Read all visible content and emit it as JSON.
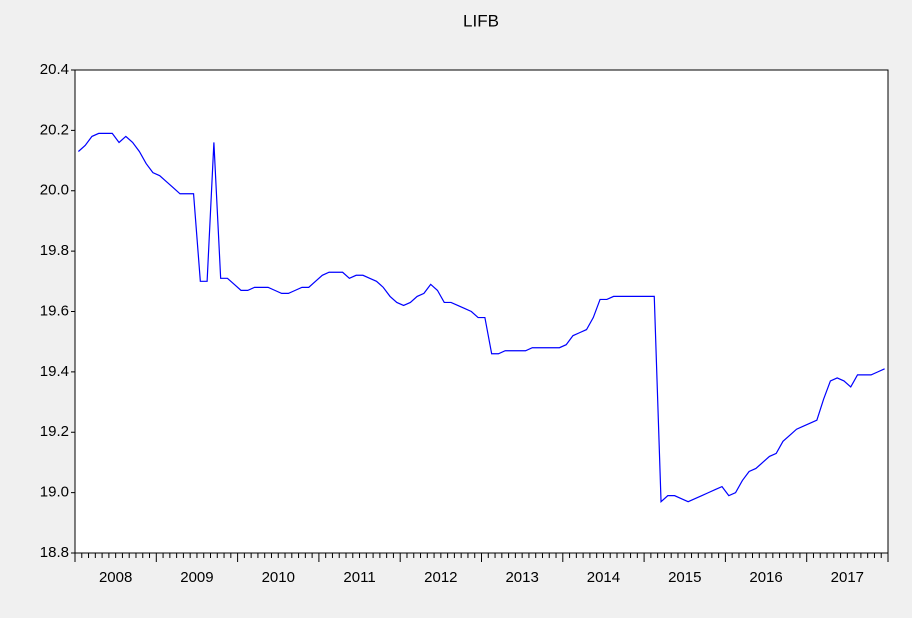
{
  "chart_data": {
    "type": "line",
    "title": "LIFB",
    "categories": [
      "2008",
      null,
      null,
      null,
      null,
      null,
      null,
      null,
      null,
      null,
      null,
      null,
      "2009",
      null,
      null,
      null,
      null,
      null,
      null,
      null,
      null,
      null,
      null,
      null,
      "2010",
      null,
      null,
      null,
      null,
      null,
      null,
      null,
      null,
      null,
      null,
      null,
      "2011",
      null,
      null,
      null,
      null,
      null,
      null,
      null,
      null,
      null,
      null,
      null,
      "2012",
      null,
      null,
      null,
      null,
      null,
      null,
      null,
      null,
      null,
      null,
      null,
      "2013",
      null,
      null,
      null,
      null,
      null,
      null,
      null,
      null,
      null,
      null,
      null,
      "2014",
      null,
      null,
      null,
      null,
      null,
      null,
      null,
      null,
      null,
      null,
      null,
      "2015",
      null,
      null,
      null,
      null,
      null,
      null,
      null,
      null,
      null,
      null,
      null,
      "2016",
      null,
      null,
      null,
      null,
      null,
      null,
      null,
      null,
      null,
      null,
      null,
      "2017",
      null,
      null,
      null,
      null,
      null,
      null,
      null,
      null,
      null,
      null,
      null
    ],
    "series": [
      {
        "name": "LIFB",
        "color": "#0000ff",
        "values": [
          20.13,
          20.15,
          20.18,
          20.19,
          20.19,
          20.19,
          20.16,
          20.18,
          20.16,
          20.13,
          20.09,
          20.06,
          20.05,
          20.03,
          20.01,
          19.99,
          19.99,
          19.99,
          19.7,
          19.7,
          20.16,
          19.71,
          19.71,
          19.69,
          19.67,
          19.67,
          19.68,
          19.68,
          19.68,
          19.67,
          19.66,
          19.66,
          19.67,
          19.68,
          19.68,
          19.7,
          19.72,
          19.73,
          19.73,
          19.73,
          19.71,
          19.72,
          19.72,
          19.71,
          19.7,
          19.68,
          19.65,
          19.63,
          19.62,
          19.63,
          19.65,
          19.66,
          19.69,
          19.67,
          19.63,
          19.63,
          19.62,
          19.61,
          19.6,
          19.58,
          19.58,
          19.46,
          19.46,
          19.47,
          19.47,
          19.47,
          19.47,
          19.48,
          19.48,
          19.48,
          19.48,
          19.48,
          19.49,
          19.52,
          19.53,
          19.54,
          19.58,
          19.64,
          19.64,
          19.65,
          19.65,
          19.65,
          19.65,
          19.65,
          19.65,
          19.65,
          18.97,
          18.99,
          18.99,
          18.98,
          18.97,
          18.98,
          18.99,
          19.0,
          19.01,
          19.02,
          18.99,
          19.0,
          19.04,
          19.07,
          19.08,
          19.1,
          19.12,
          19.13,
          19.17,
          19.19,
          19.21,
          19.22,
          19.23,
          19.24,
          19.31,
          19.37,
          19.38,
          19.37,
          19.35,
          19.39,
          19.39,
          19.39,
          19.4,
          19.41
        ]
      }
    ],
    "ylim": [
      18.8,
      20.4
    ],
    "yticks": [
      {
        "value": 18.8,
        "label": "18.8"
      },
      {
        "value": 19.0,
        "label": "19.0"
      },
      {
        "value": 19.2,
        "label": "19.2"
      },
      {
        "value": 19.4,
        "label": "19.4"
      },
      {
        "value": 19.6,
        "label": "19.6"
      },
      {
        "value": 19.8,
        "label": "19.8"
      },
      {
        "value": 20.0,
        "label": "20.0"
      },
      {
        "value": 20.2,
        "label": "20.2"
      },
      {
        "value": 20.4,
        "label": "20.4"
      }
    ],
    "grid": false
  }
}
